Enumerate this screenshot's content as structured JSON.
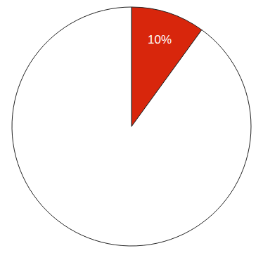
{
  "chart_data": {
    "type": "pie",
    "categories": [
      null,
      null
    ],
    "values": [
      10,
      90
    ],
    "value_labels": [
      "10%",
      null
    ],
    "colors": [
      "#d8260c",
      "#ffffff"
    ],
    "data_labels": true
  }
}
